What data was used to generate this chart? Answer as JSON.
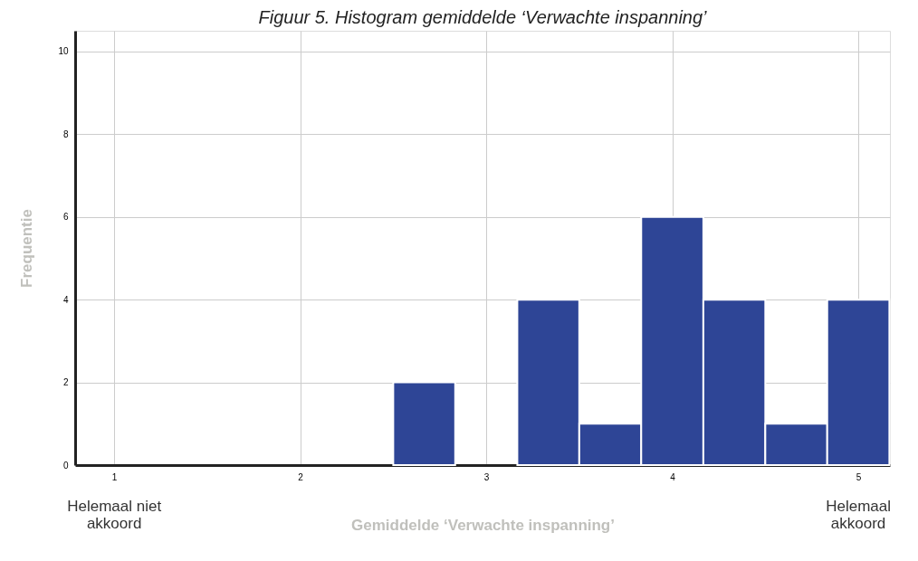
{
  "chart_data": {
    "type": "histogram",
    "title": "Figuur 5. Histogram gemiddelde ‘Verwachte inspanning’",
    "xlabel": "Gemiddelde ‘Verwachte inspanning’",
    "ylabel": "Frequentie",
    "bins": [
      2.5,
      2.833,
      3.167,
      3.5,
      3.833,
      4.167,
      4.5,
      4.833,
      5.167
    ],
    "values": [
      2,
      0,
      4,
      1,
      6,
      4,
      1,
      4
    ],
    "color": "#2e4596",
    "xlim": [
      0.79,
      5.17
    ],
    "xticks": [
      1,
      2,
      3,
      4,
      5
    ],
    "ylim": [
      0,
      10.5
    ],
    "yticks": [
      0,
      2,
      4,
      6,
      8,
      10
    ],
    "grid": true,
    "annotations": [
      "Helemaal niet akkoord",
      "Helemaal akkoord"
    ]
  }
}
